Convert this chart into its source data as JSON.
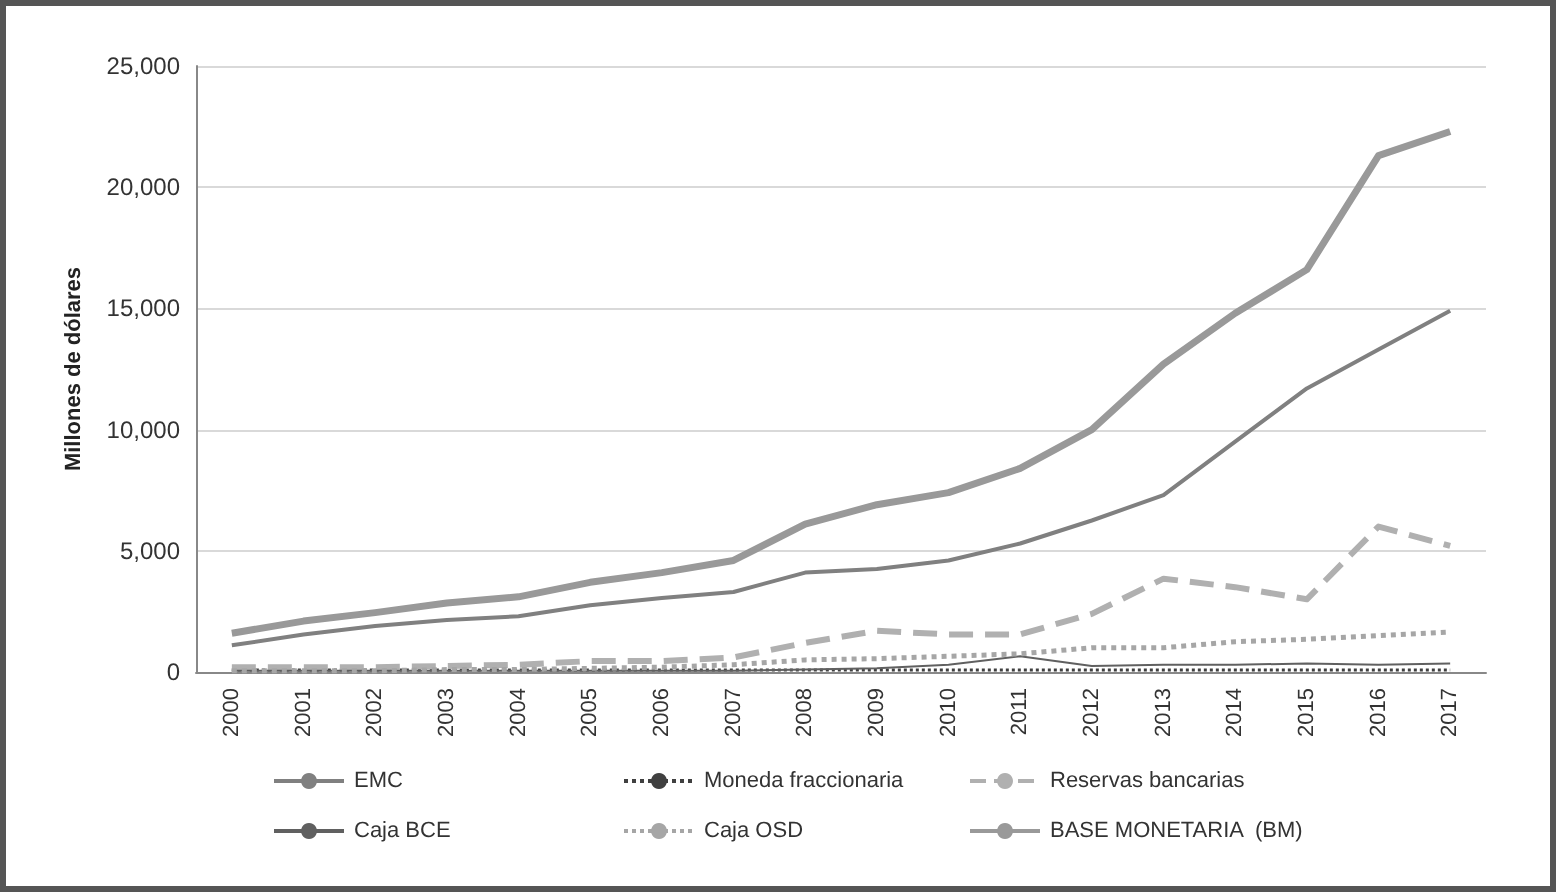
{
  "chart_data": {
    "type": "line",
    "ylabel": "Millones de dólares",
    "categories": [
      "2000",
      "2001",
      "2002",
      "2003",
      "2004",
      "2005",
      "2006",
      "2007",
      "2008",
      "2009",
      "2010",
      "2011",
      "2012",
      "2013",
      "2014",
      "2015",
      "2016",
      "2017"
    ],
    "ylim": [
      0,
      25000
    ],
    "yticks": [
      {
        "value": 0,
        "label": "0"
      },
      {
        "value": 5000,
        "label": "5,000"
      },
      {
        "value": 10000,
        "label": "10,000"
      },
      {
        "value": 15000,
        "label": "15,000"
      },
      {
        "value": 20000,
        "label": "20,000"
      },
      {
        "value": 25000,
        "label": "25,000"
      }
    ],
    "grid": "y",
    "legend": "bottom",
    "marker": "none",
    "series": [
      {
        "name": "EMC",
        "color": "#808080",
        "line_style": "solid",
        "values": [
          1100,
          1550,
          1900,
          2150,
          2300,
          2750,
          3050,
          3300,
          4100,
          4250,
          4600,
          5300,
          6250,
          7300,
          9500,
          11700,
          13300,
          14900
        ]
      },
      {
        "name": "Moneda fraccionaria",
        "color": "#404040",
        "line_style": "dotted",
        "values": [
          80,
          80,
          80,
          80,
          80,
          80,
          80,
          80,
          80,
          80,
          80,
          80,
          80,
          80,
          80,
          80,
          80,
          80
        ]
      },
      {
        "name": "Reservas bancarias",
        "color": "#b0b0b0",
        "line_style": "dashed",
        "values": [
          200,
          200,
          200,
          250,
          300,
          450,
          450,
          600,
          1200,
          1700,
          1550,
          1550,
          2400,
          3850,
          3500,
          3000,
          6000,
          5200
        ]
      },
      {
        "name": "Caja BCE",
        "color": "#606060",
        "line_style": "solid",
        "values": [
          50,
          50,
          50,
          50,
          50,
          50,
          50,
          50,
          100,
          150,
          300,
          650,
          250,
          300,
          300,
          350,
          300,
          350
        ]
      },
      {
        "name": "Caja OSD",
        "color": "#a6a6a6",
        "line_style": "dotted",
        "values": [
          50,
          50,
          50,
          100,
          100,
          150,
          200,
          300,
          500,
          550,
          650,
          750,
          1000,
          1000,
          1250,
          1350,
          1500,
          1650
        ]
      },
      {
        "name": "BASE MONETARIA  (BM)",
        "color": "#999999",
        "line_style": "solid",
        "values": [
          1600,
          2100,
          2450,
          2850,
          3100,
          3700,
          4100,
          4600,
          6100,
          6900,
          7400,
          8400,
          10000,
          12700,
          14800,
          16600,
          21300,
          22300
        ]
      }
    ]
  }
}
